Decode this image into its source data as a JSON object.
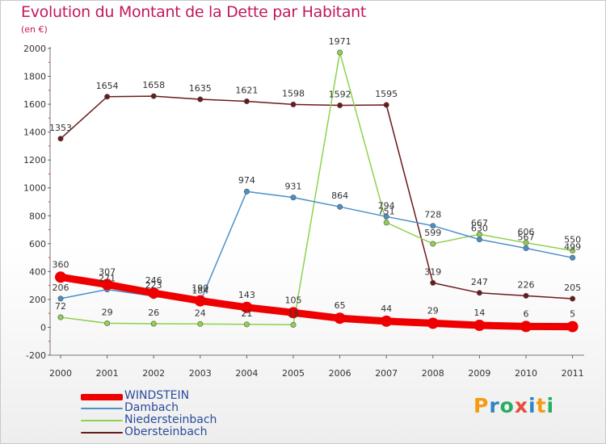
{
  "header": {
    "title": "Evolution du Montant de la Dette par Habitant",
    "subtitle": "(en €)"
  },
  "logo": {
    "text": "Proxiti",
    "letters": [
      {
        "ch": "P",
        "color": "#f39c12"
      },
      {
        "ch": "r",
        "color": "#2e86c1"
      },
      {
        "ch": "o",
        "color": "#27ae60"
      },
      {
        "ch": "x",
        "color": "#e74c3c"
      },
      {
        "ch": "i",
        "color": "#2e86c1"
      },
      {
        "ch": "t",
        "color": "#f39c12"
      },
      {
        "ch": "i",
        "color": "#27ae60"
      }
    ]
  },
  "chart_data": {
    "type": "line",
    "title": "Evolution du Montant de la Dette par Habitant",
    "subtitle": "(en €)",
    "x": [
      "2000",
      "2001",
      "2002",
      "2003",
      "2004",
      "2005",
      "2006",
      "2007",
      "2008",
      "2009",
      "2010",
      "2011"
    ],
    "ylim": [
      -200,
      2000
    ],
    "yticks": [
      -200,
      0,
      200,
      400,
      600,
      800,
      1000,
      1200,
      1400,
      1600,
      1800,
      2000
    ],
    "grid": false,
    "legend_position": "bottom-left",
    "series": [
      {
        "name": "Obersteinbach",
        "color": "#6b1a1a",
        "values": [
          1353,
          1654,
          1658,
          1635,
          1621,
          1598,
          1592,
          1595,
          319,
          247,
          226,
          205
        ]
      },
      {
        "name": "Niedersteinbach",
        "color": "#8fd14f",
        "values": [
          72,
          29,
          26,
          24,
          21,
          18,
          1971,
          751,
          599,
          667,
          606,
          550
        ]
      },
      {
        "name": "Dambach",
        "color": "#4a90c8",
        "values": [
          206,
          271,
          223,
          184,
          974,
          931,
          864,
          794,
          728,
          630,
          567,
          499
        ]
      },
      {
        "name": "WINDSTEIN",
        "color": "#ee0000",
        "values": [
          360,
          307,
          246,
          190,
          143,
          105,
          65,
          44,
          29,
          14,
          6,
          5
        ]
      }
    ],
    "data_labels": {
      "Obersteinbach": [
        "1353",
        "1654",
        "1658",
        "1635",
        "1621",
        "1598",
        "1592",
        "1595",
        "319",
        "247",
        "226",
        "205"
      ],
      "Niedersteinbach": [
        "72",
        "29",
        "26",
        "24",
        "21",
        "18",
        "1971",
        "751",
        "599",
        "667",
        "606",
        "550"
      ],
      "Dambach": [
        "206",
        "271",
        "223",
        "184",
        "974",
        "931",
        "864",
        "794",
        "728",
        "630",
        "567",
        "499"
      ],
      "WINDSTEIN": [
        "360",
        "307",
        "246",
        "190",
        "143",
        "105",
        "65",
        "44",
        "29",
        "14",
        "6",
        "5"
      ]
    },
    "legend": [
      {
        "name": "WINDSTEIN",
        "color": "#ee0000"
      },
      {
        "name": "Dambach",
        "color": "#4a90c8"
      },
      {
        "name": "Niedersteinbach",
        "color": "#8fd14f"
      },
      {
        "name": "Obersteinbach",
        "color": "#6b1a1a"
      }
    ]
  }
}
